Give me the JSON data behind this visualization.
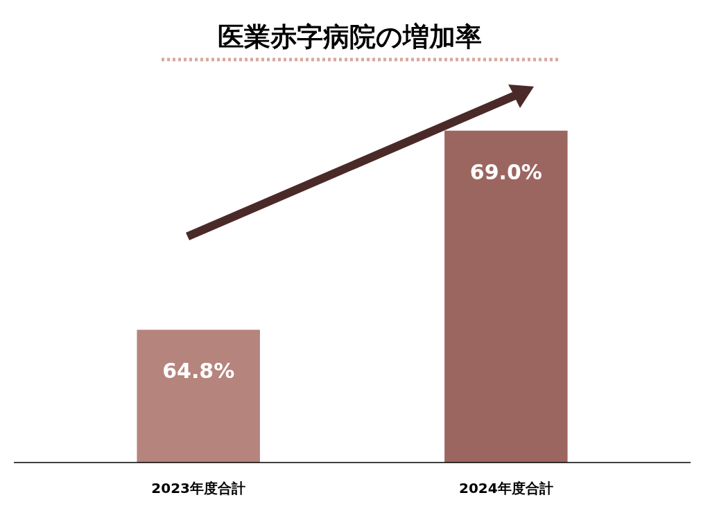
{
  "chart_data": {
    "type": "bar",
    "title": "医業赤字病院の増加率",
    "categories": [
      "2023年度合計",
      "2024年度合計"
    ],
    "values": [
      64.8,
      69.0
    ],
    "colors": [
      "#b5847c",
      "#9c6660"
    ],
    "value_labels": [
      "64.8%",
      "69.0%"
    ],
    "ylim": [
      62,
      70.5
    ],
    "tick_labels": "x"
  }
}
